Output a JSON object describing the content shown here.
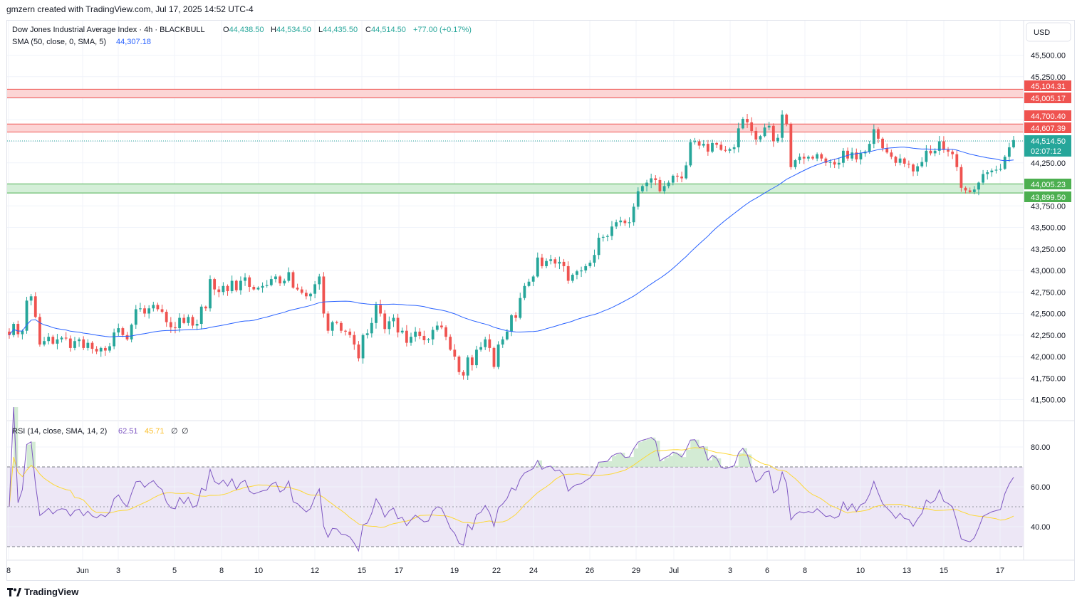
{
  "header": {
    "credit": "gmzern created with TradingView.com, Jul 17, 2025 14:52 UTC-4"
  },
  "legend": {
    "symbol": "Dow Jones Industrial Average Index · 4h · BLACKBULL",
    "o_label": "O",
    "o": "44,438.50",
    "h_label": "H",
    "h": "44,534.50",
    "l_label": "L",
    "l": "44,435.50",
    "c_label": "C",
    "c": "44,514.50",
    "change": "+77.00 (+0.17%)",
    "sma_label": "SMA (50, close, 0, SMA, 5)",
    "sma_value": "44,307.18",
    "rsi_label": "RSI (14, close, SMA, 14, 2)",
    "rsi_value": "62.51",
    "rsi_ma_value": "45.71",
    "rsi_extra1": "∅",
    "rsi_extra2": "∅"
  },
  "currency_button": "USD",
  "price_labels": {
    "last_price": "44,514.50",
    "countdown": "02:07:12",
    "zone1_top": "45,104.31",
    "zone1_bottom": "45,005.17",
    "zone2_top": "44,700.40",
    "zone2_bottom": "44,607.39",
    "zone3_top": "44,005.23",
    "zone3_bottom": "43,899.50"
  },
  "price_axis_ticks": [
    "45,500.00",
    "45,250.00",
    "44,250.00",
    "43,750.00",
    "43,500.00",
    "43,250.00",
    "43,000.00",
    "42,750.00",
    "42,500.00",
    "42,250.00",
    "42,000.00",
    "41,750.00",
    "41,500.00"
  ],
  "rsi_axis_ticks": [
    "80.00",
    "60.00",
    "40.00"
  ],
  "time_axis_ticks": [
    "8",
    "Jun",
    "3",
    "5",
    "8",
    "10",
    "12",
    "15",
    "17",
    "19",
    "22",
    "24",
    "26",
    "29",
    "Jul",
    "3",
    "6",
    "8",
    "10",
    "13",
    "15",
    "17"
  ],
  "footer_logo": "TradingView",
  "colors": {
    "up": "#26a69a",
    "down": "#ef5350",
    "sma": "#2962ff",
    "rsi": "#7e57c2",
    "rsi_ma": "#fdd835",
    "resistance_fill": "#fcd5d5",
    "resistance_line": "#ef5350",
    "support_fill": "#d4efd8",
    "support_line": "#4caf50",
    "rsi_band": "#ede7f6"
  },
  "chart_data": [
    {
      "type": "candlestick",
      "title": "Dow Jones Industrial Average Index · 4h · BLACKBULL",
      "ylim": [
        41300,
        45750
      ],
      "y_ticks": [
        41500,
        41750,
        42000,
        42250,
        42500,
        42750,
        43000,
        43250,
        43500,
        43750,
        44250,
        45250,
        45500
      ],
      "zones": [
        {
          "kind": "resistance",
          "top": 45104.31,
          "bottom": 45005.17
        },
        {
          "kind": "resistance",
          "top": 44700.4,
          "bottom": 44607.39
        },
        {
          "kind": "support",
          "top": 44005.23,
          "bottom": 43899.5
        }
      ],
      "last_price": 44514.5,
      "closes": [
        42250,
        42380,
        42260,
        42300,
        42650,
        42700,
        42460,
        42140,
        42180,
        42230,
        42150,
        42200,
        42220,
        42210,
        42100,
        42180,
        42200,
        42100,
        42160,
        42090,
        42060,
        42100,
        42070,
        42120,
        42280,
        42330,
        42250,
        42200,
        42370,
        42550,
        42560,
        42500,
        42560,
        42600,
        42550,
        42520,
        42400,
        42340,
        42330,
        42450,
        42390,
        42460,
        42360,
        42380,
        42580,
        42560,
        42900,
        42780,
        42750,
        42820,
        42760,
        42880,
        42770,
        42880,
        42920,
        42810,
        42780,
        42800,
        42820,
        42830,
        42900,
        42930,
        42850,
        42880,
        42980,
        42800,
        42780,
        42740,
        42700,
        42730,
        42840,
        42930,
        42500,
        42300,
        42400,
        42390,
        42300,
        42290,
        42250,
        42140,
        41980,
        42250,
        42270,
        42390,
        42600,
        42500,
        42320,
        42410,
        42450,
        42280,
        42300,
        42160,
        42230,
        42290,
        42240,
        42190,
        42200,
        42310,
        42360,
        42340,
        42230,
        42080,
        42000,
        41820,
        41780,
        41990,
        41900,
        42080,
        42110,
        42200,
        42100,
        41880,
        42140,
        42200,
        42290,
        42480,
        42450,
        42680,
        42820,
        42870,
        42930,
        43150,
        43050,
        43110,
        43130,
        43080,
        43100,
        43050,
        42880,
        42950,
        42990,
        43000,
        43050,
        43090,
        43180,
        43380,
        43390,
        43400,
        43510,
        43560,
        43580,
        43550,
        43560,
        43740,
        43920,
        43980,
        44020,
        44070,
        44050,
        43920,
        43980,
        44020,
        44100,
        44090,
        44070,
        44220,
        44490,
        44500,
        44450,
        44470,
        44380,
        44480,
        44460,
        44400,
        44390,
        44410,
        44430,
        44650,
        44760,
        44720,
        44620,
        44520,
        44560,
        44660,
        44680,
        44500,
        44540,
        44810,
        44700,
        44200,
        44280,
        44320,
        44300,
        44320,
        44300,
        44350,
        44300,
        44250,
        44260,
        44230,
        44250,
        44390,
        44300,
        44370,
        44290,
        44360,
        44380,
        44470,
        44640,
        44530,
        44420,
        44370,
        44320,
        44250,
        44300,
        44240,
        44230,
        44150,
        44210,
        44260,
        44390,
        44360,
        44390,
        44500,
        44400,
        44380,
        44350,
        44200,
        43960,
        43930,
        43910,
        43940,
        44020,
        44120,
        44140,
        44160,
        44170,
        44180,
        44320,
        44430,
        44514
      ]
    },
    {
      "type": "line",
      "title": "SMA (50, close, 0, SMA, 5)",
      "last_value": 44307.18
    },
    {
      "type": "line",
      "title": "RSI (14, close, SMA, 14, 2)",
      "ylim": [
        26,
        92
      ],
      "bands": [
        30,
        50,
        70
      ],
      "y_ticks": [
        80,
        60,
        40
      ],
      "rsi_last": 62.51,
      "rsi_ma_last": 45.71,
      "x_ticks": [
        "8",
        "Jun",
        "3",
        "5",
        "8",
        "10",
        "12",
        "15",
        "17",
        "19",
        "22",
        "24",
        "26",
        "29",
        "Jul",
        "3",
        "6",
        "8",
        "10",
        "13",
        "15",
        "17"
      ]
    }
  ]
}
